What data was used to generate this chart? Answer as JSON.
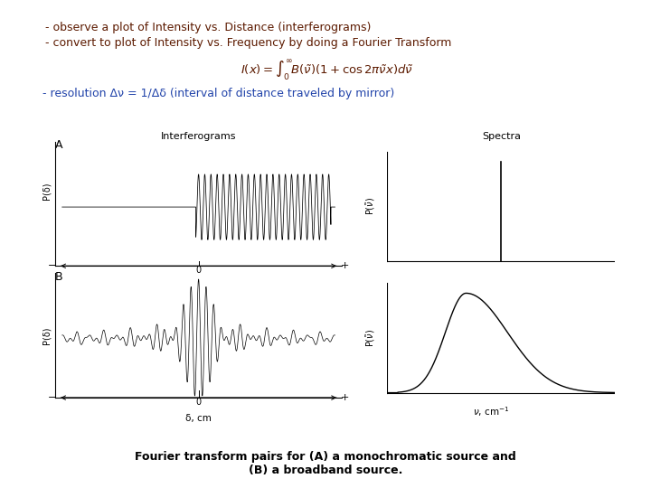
{
  "bg_color": "#ffffff",
  "line1": "- observe a plot of Intensity vs. Distance (interferograms)",
  "line2": "- convert to plot of Intensity vs. Frequency by doing a Fourier Transform",
  "line3": "- resolution Δν = 1/Δδ (interval of distance traveled by mirror)",
  "caption_line1": "Fourier transform pairs for (A) a monochromatic source and",
  "caption_line2": "(B) a broadband source.",
  "text_color_dark": "#5c1a00",
  "text_color_blue": "#2244aa",
  "panel_A_label": "A",
  "panel_B_label": "B",
  "interf_title": "Interferograms",
  "spectra_title": "Spectra",
  "xlabel_interf": "δ, cm",
  "mono_freq": 22,
  "figwidth": 7.2,
  "figheight": 5.4,
  "dpi": 100
}
